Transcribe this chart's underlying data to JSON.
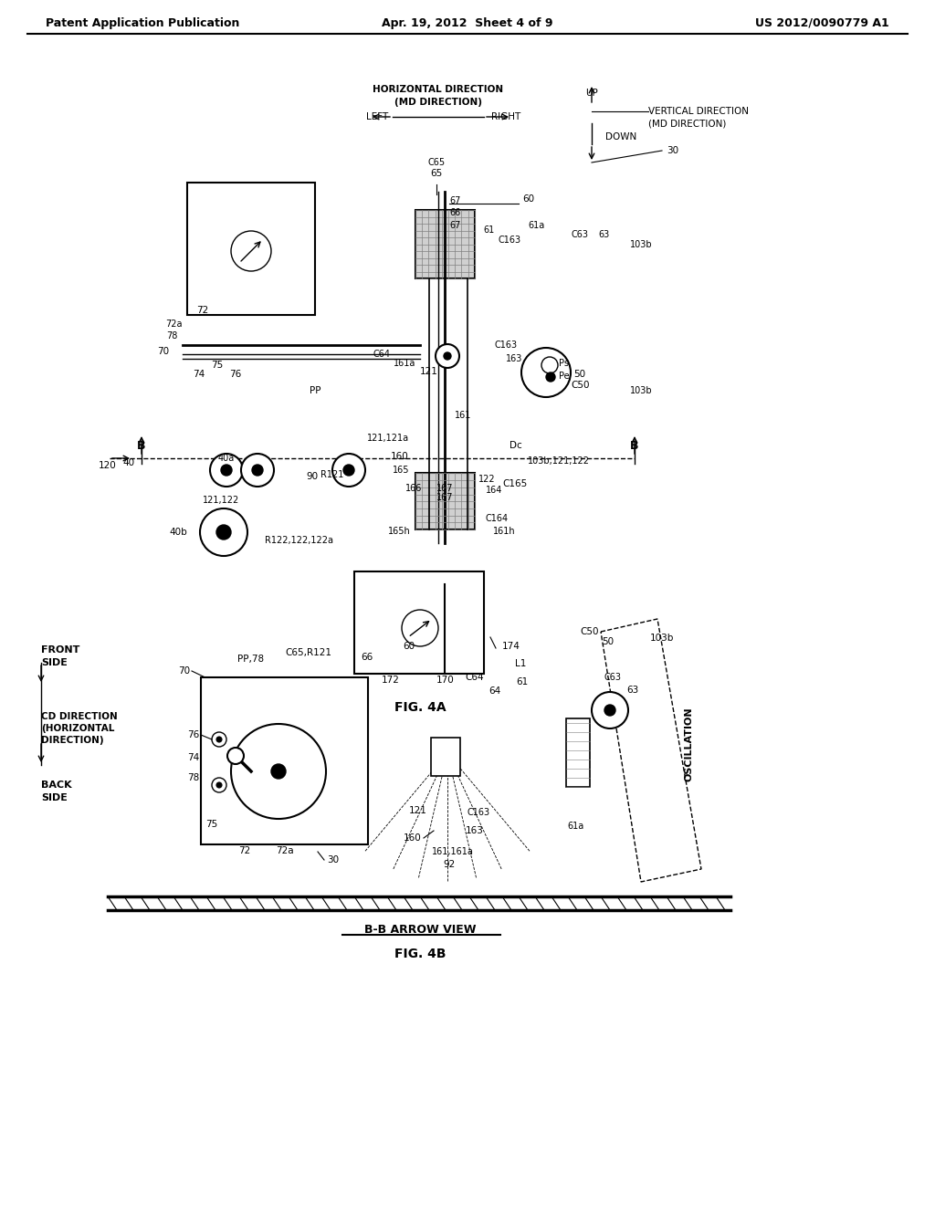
{
  "bg_color": "#ffffff",
  "line_color": "#000000",
  "header_left": "Patent Application Publication",
  "header_mid": "Apr. 19, 2012  Sheet 4 of 9",
  "header_right": "US 2012/0090779 A1",
  "fig4a_label": "FIG. 4A",
  "fig4b_label": "FIG. 4B",
  "fig4b_sub": "B-B ARROW VIEW"
}
